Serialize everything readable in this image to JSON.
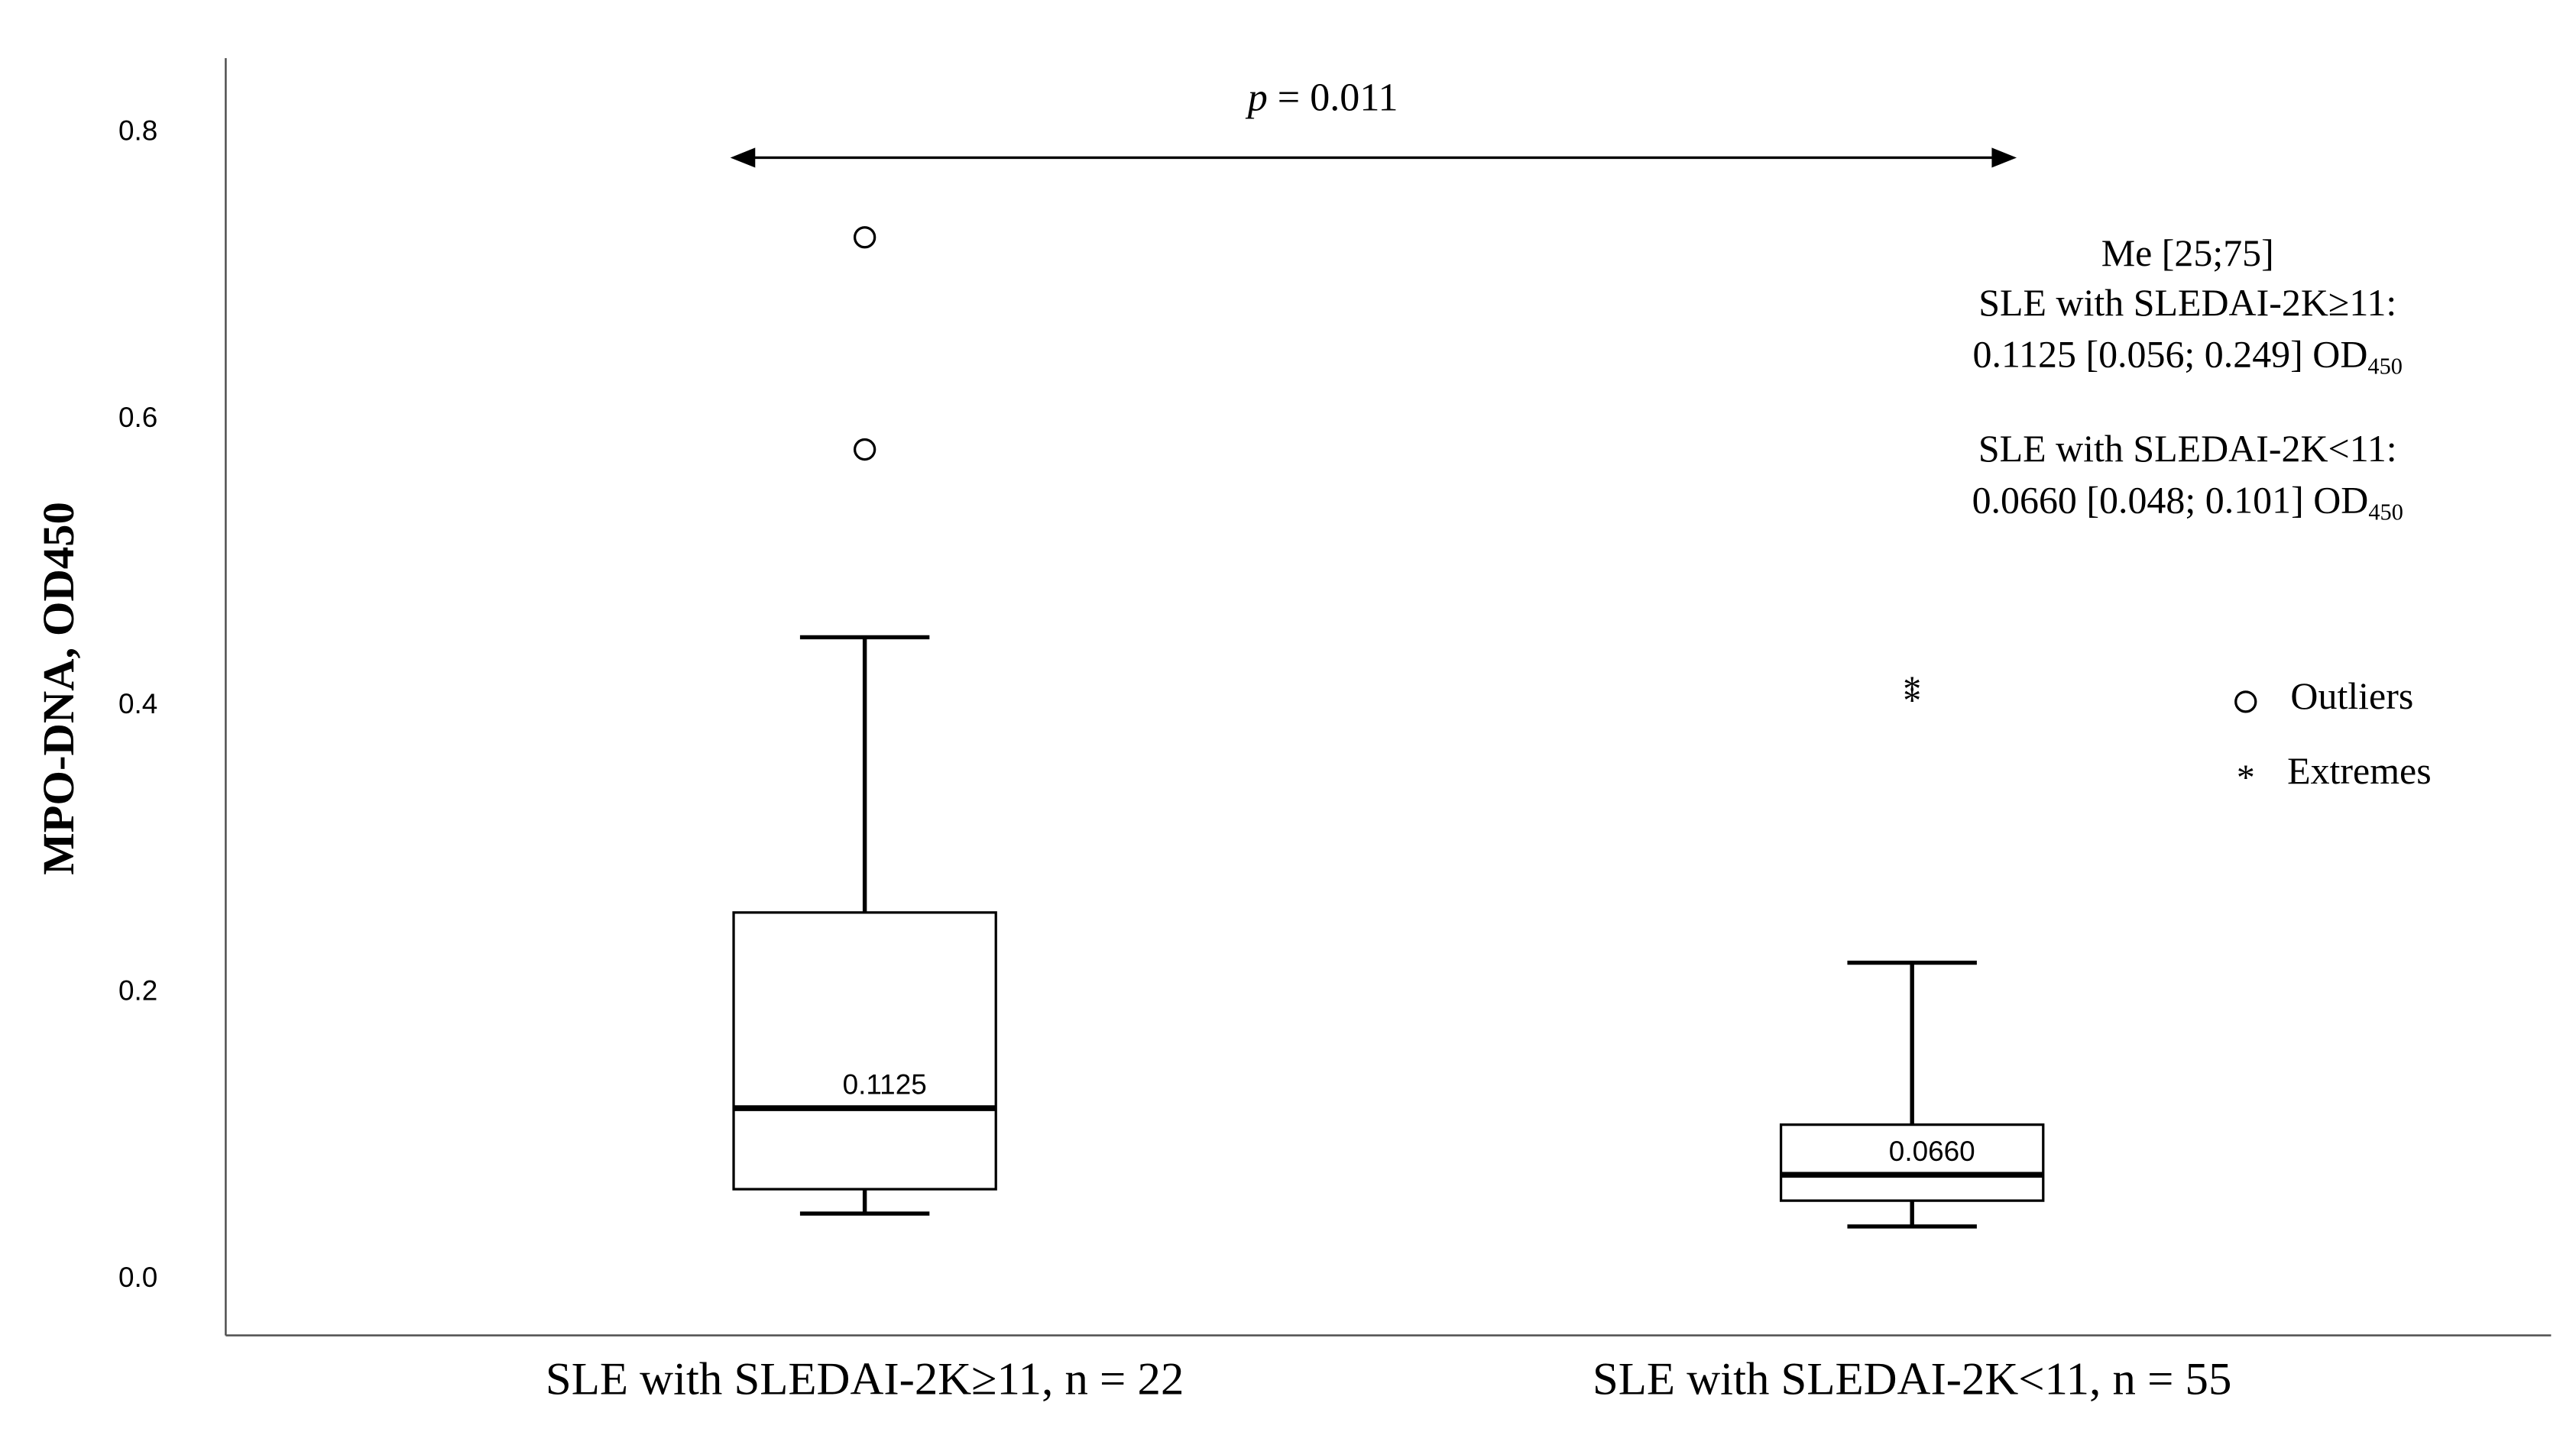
{
  "chart_data": {
    "type": "box",
    "y_label": "MPO-DNA, OD450",
    "categories": [
      "SLE with SLEDAI-2K≥11, n = 22",
      "SLE with SLEDAI-2K<11, n = 55"
    ],
    "boxes": [
      {
        "whisker_low": 0.039,
        "q1": 0.056,
        "median": 0.1125,
        "q3": 0.249,
        "whisker_high": 0.441,
        "median_label": "0.1125",
        "outliers": [
          0.72,
          0.572
        ],
        "extremes": []
      },
      {
        "whisker_low": 0.03,
        "q1": 0.048,
        "median": 0.066,
        "q3": 0.101,
        "whisker_high": 0.214,
        "median_label": "0.0660",
        "outliers": [],
        "extremes": [
          0.407,
          0.399
        ]
      }
    ],
    "color": "#000000",
    "ylim": [
      -0.046,
      0.845
    ],
    "yticks": [
      {
        "value": 0,
        "label": "0.0"
      },
      0.2,
      0.4,
      0.6,
      0.8
    ],
    "p_value": {
      "symbol": "p",
      "text": "= 0.011"
    },
    "summary": [
      {
        "text": "Me [25;75]"
      },
      {
        "text": "SLE with SLEDAI-2K≥11:"
      },
      {
        "text": "0.1125 [0.056; 0.249] OD",
        "sub": "450"
      },
      {
        "text": "SLE with SLEDAI-2K<11:"
      },
      {
        "text": "0.0660 [0.048; 0.101] OD",
        "sub": "450"
      }
    ],
    "legend": [
      "Outliers",
      "Extremes"
    ]
  }
}
